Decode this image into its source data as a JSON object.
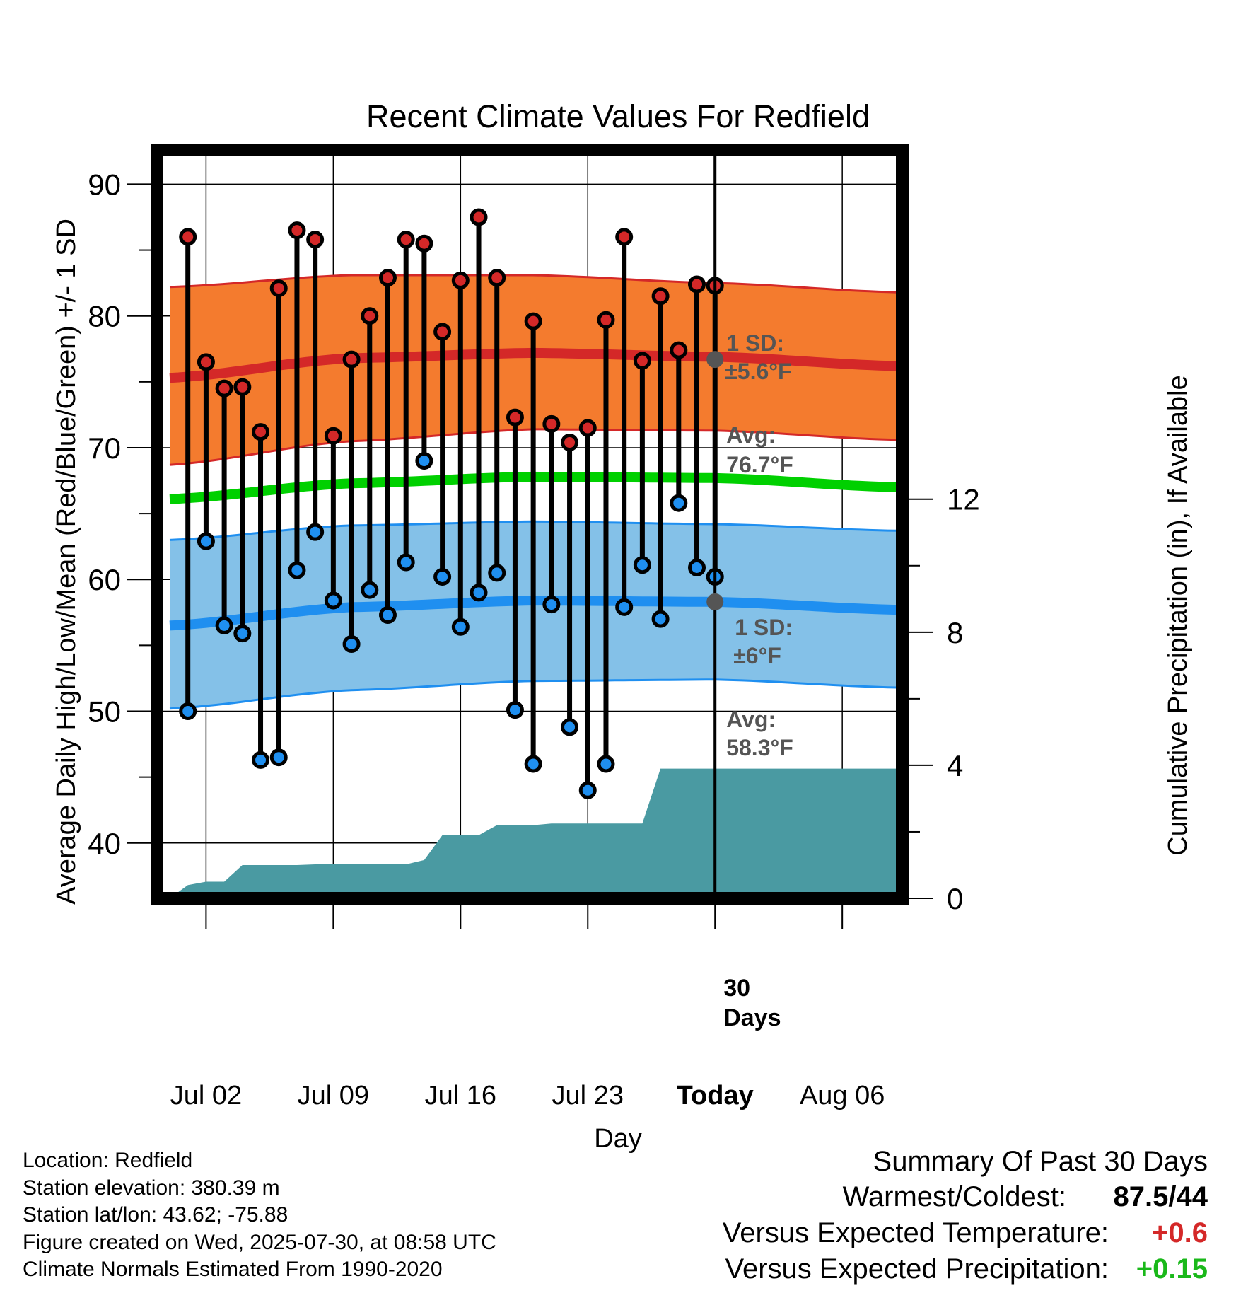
{
  "chart_data": {
    "type": "line",
    "title": "Recent Climate Values For Redfield",
    "xlabel": "Day",
    "ylabel": "Average Daily High/Low/Mean (Red/Blue/Green) +/- 1 SD",
    "y2label": "Cumulative Precipitation (in), If Available",
    "ylim": [
      35.8,
      92.6
    ],
    "y_ticks": [
      40,
      50,
      60,
      70,
      80,
      90
    ],
    "y2lim": [
      0,
      22.5
    ],
    "y2_ticks": [
      0,
      4,
      8,
      12
    ],
    "xlim": [
      -0.7,
      40.3
    ],
    "x_ticks": [
      {
        "label": "Jul 02",
        "day": 2
      },
      {
        "label": "Jul 09",
        "day": 9
      },
      {
        "label": "Jul 16",
        "day": 16
      },
      {
        "label": "Jul 23",
        "day": 23
      },
      {
        "label": "Today",
        "day": 30
      },
      {
        "label": "Aug 06",
        "day": 37
      }
    ],
    "today_day": 30,
    "period_label_1": "30",
    "period_label_2": "Days",
    "days": [
      1,
      2,
      3,
      4,
      5,
      6,
      7,
      8,
      9,
      10,
      11,
      12,
      13,
      14,
      15,
      16,
      17,
      18,
      19,
      20,
      21,
      22,
      23,
      24,
      25,
      26,
      27,
      28,
      29,
      30
    ],
    "daily_high": [
      86.0,
      76.5,
      74.5,
      74.6,
      71.2,
      82.1,
      86.5,
      85.8,
      70.9,
      76.7,
      80.0,
      82.9,
      85.8,
      85.5,
      78.8,
      82.7,
      87.5,
      82.9,
      72.3,
      79.6,
      71.8,
      70.4,
      71.5,
      79.7,
      86.0,
      76.6,
      81.5,
      77.4,
      82.4,
      82.3
    ],
    "daily_low": [
      50.0,
      62.9,
      56.5,
      55.9,
      46.3,
      46.5,
      60.7,
      63.6,
      58.4,
      55.1,
      59.2,
      57.3,
      61.3,
      69.0,
      60.2,
      56.4,
      59.0,
      60.5,
      50.1,
      46.0,
      58.1,
      48.8,
      44.0,
      46.0,
      57.9,
      61.1,
      57.0,
      65.8,
      60.9,
      60.2
    ],
    "normal_x": [
      0,
      10,
      20,
      30,
      40
    ],
    "normal_high": [
      75.3,
      76.8,
      77.2,
      76.9,
      76.2
    ],
    "normal_high_upper": [
      82.2,
      83.1,
      83.1,
      82.5,
      81.8
    ],
    "normal_high_lower": [
      68.7,
      70.5,
      71.4,
      71.3,
      70.6
    ],
    "normal_mean": [
      66.1,
      67.3,
      67.8,
      67.7,
      67.0
    ],
    "normal_low": [
      56.5,
      57.9,
      58.4,
      58.3,
      57.7
    ],
    "normal_low_upper": [
      63.0,
      64.1,
      64.4,
      64.2,
      63.7
    ],
    "normal_low_lower": [
      50.2,
      51.6,
      52.3,
      52.4,
      51.8
    ],
    "precip_days": [
      0,
      0.5,
      1,
      2,
      3,
      4,
      5,
      6,
      7,
      8,
      9,
      10,
      11,
      12,
      13,
      14,
      15,
      16,
      17,
      18,
      19,
      20,
      21,
      22,
      23,
      24,
      25,
      26,
      27,
      28,
      29,
      30,
      31,
      32,
      33,
      34,
      35,
      36,
      37,
      38,
      39,
      40
    ],
    "cumulative_precip": [
      0,
      0.2,
      0.4,
      0.5,
      0.5,
      1.0,
      1.0,
      1.0,
      1.0,
      1.02,
      1.02,
      1.02,
      1.02,
      1.02,
      1.02,
      1.15,
      1.9,
      1.9,
      1.9,
      2.2,
      2.2,
      2.2,
      2.25,
      2.25,
      2.25,
      2.25,
      2.25,
      2.25,
      3.9,
      3.9,
      3.9,
      3.9,
      3.9,
      3.9,
      3.9,
      3.9,
      3.9,
      3.9,
      3.9,
      3.9,
      3.9,
      3.9
    ],
    "high_sd_label_1": "1 SD:",
    "high_sd_label_2": "±5.6°F",
    "high_avg_label_1": "Avg:",
    "high_avg_label_2": "76.7°F",
    "low_sd_label_1": "1 SD:",
    "low_sd_label_2": "±6°F",
    "low_avg_label_1": "Avg:",
    "low_avg_label_2": "58.3°F",
    "high_avg_value": 76.7,
    "low_avg_value": 58.3,
    "colors": {
      "high_band": "#f47b2e",
      "high_line": "#d42828",
      "low_band": "#84c1e8",
      "low_line": "#1f8ff0",
      "mean_line": "#00d000",
      "precip_fill": "#4a9aa2",
      "high_dot": "#d42828",
      "low_dot": "#1f8ff0",
      "annotation": "#555555"
    }
  },
  "info": {
    "location": "Location: Redfield",
    "elevation": "Station elevation: 380.39 m",
    "latlon": "Station lat/lon: 43.62; -75.88",
    "created": "Figure created on Wed, 2025-07-30, at 08:58 UTC",
    "normals": "Climate Normals Estimated From 1990-2020"
  },
  "summary": {
    "title": "Summary Of Past 30 Days",
    "warmest_label": "Warmest/Coldest:",
    "warmest_value": "87.5/44",
    "temp_label": "Versus Expected Temperature:",
    "temp_value": "+0.6",
    "temp_color": "#d42828",
    "precip_label": "Versus Expected Precipitation:",
    "precip_value": "+0.15",
    "precip_color": "#1ab81a"
  }
}
